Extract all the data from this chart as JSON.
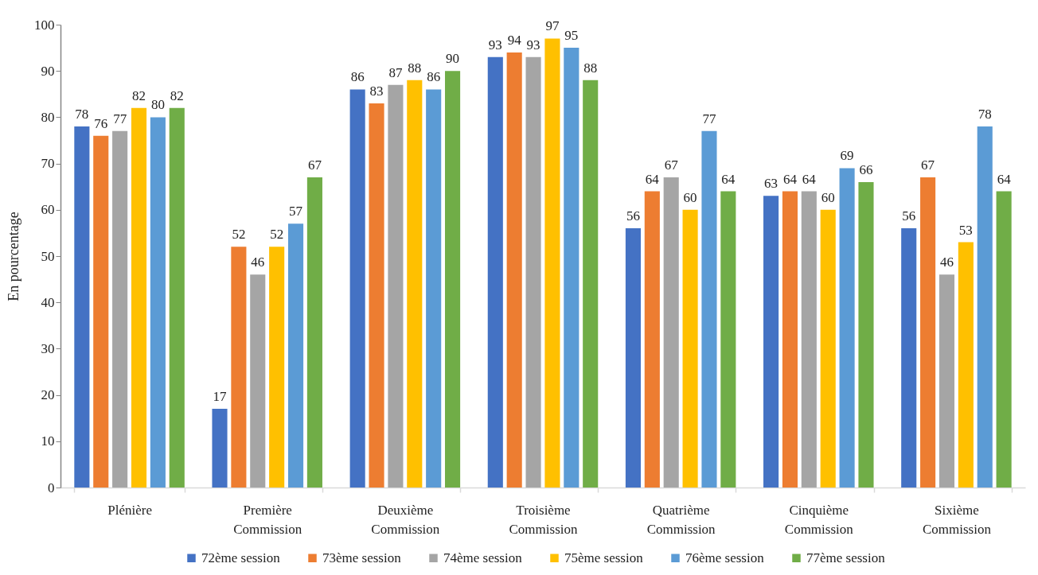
{
  "chart_data": {
    "type": "bar",
    "categories": [
      "Plénière",
      "Première Commission",
      "Deuxième Commission",
      "Troisième Commission",
      "Quatrième Commission",
      "Cinquième Commission",
      "Sixième Commission"
    ],
    "series": [
      {
        "name": "72ème session",
        "color": "#4472c4",
        "values": [
          78,
          17,
          86,
          93,
          56,
          63,
          56
        ]
      },
      {
        "name": "73ème session",
        "color": "#ed7d31",
        "values": [
          76,
          52,
          83,
          94,
          64,
          64,
          67
        ]
      },
      {
        "name": "74ème session",
        "color": "#a5a5a5",
        "values": [
          77,
          46,
          87,
          93,
          67,
          64,
          46
        ]
      },
      {
        "name": "75ème session",
        "color": "#ffc000",
        "values": [
          82,
          52,
          88,
          97,
          60,
          60,
          53
        ]
      },
      {
        "name": "76ème session",
        "color": "#5b9bd5",
        "values": [
          80,
          57,
          86,
          95,
          77,
          69,
          78
        ]
      },
      {
        "name": "77ème session",
        "color": "#70ad47",
        "values": [
          82,
          67,
          90,
          88,
          64,
          66,
          64
        ]
      }
    ],
    "ylabel": "En pourcentage",
    "ylim": [
      0,
      100
    ],
    "yticks": [
      0,
      10,
      20,
      30,
      40,
      50,
      60,
      70,
      80,
      90,
      100
    ],
    "data_labels": true,
    "legend": "bottom"
  }
}
